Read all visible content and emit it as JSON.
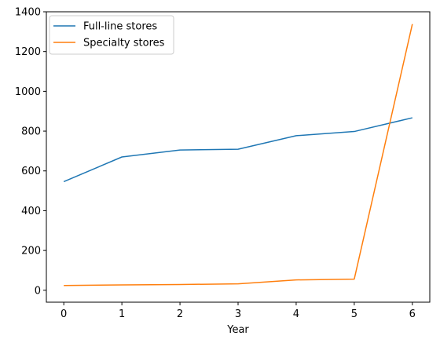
{
  "chart_data": {
    "type": "line",
    "x": [
      0,
      1,
      2,
      3,
      4,
      5,
      6
    ],
    "series": [
      {
        "name": "Full-line stores",
        "color": "#1f77b4",
        "values": [
          546,
          670,
          705,
          709,
          777,
          798,
          867
        ]
      },
      {
        "name": "Specialty stores",
        "color": "#ff7f0e",
        "values": [
          24,
          27,
          29,
          32,
          52,
          56,
          1338
        ]
      }
    ],
    "title": "",
    "xlabel": "Year",
    "ylabel": "",
    "xlim": [
      -0.3,
      6.3
    ],
    "ylim": [
      -60,
      1400
    ],
    "xticks": [
      0,
      1,
      2,
      3,
      4,
      5,
      6
    ],
    "yticks": [
      0,
      200,
      400,
      600,
      800,
      1000,
      1200,
      1400
    ],
    "grid": false,
    "legend_position": "top-left"
  }
}
